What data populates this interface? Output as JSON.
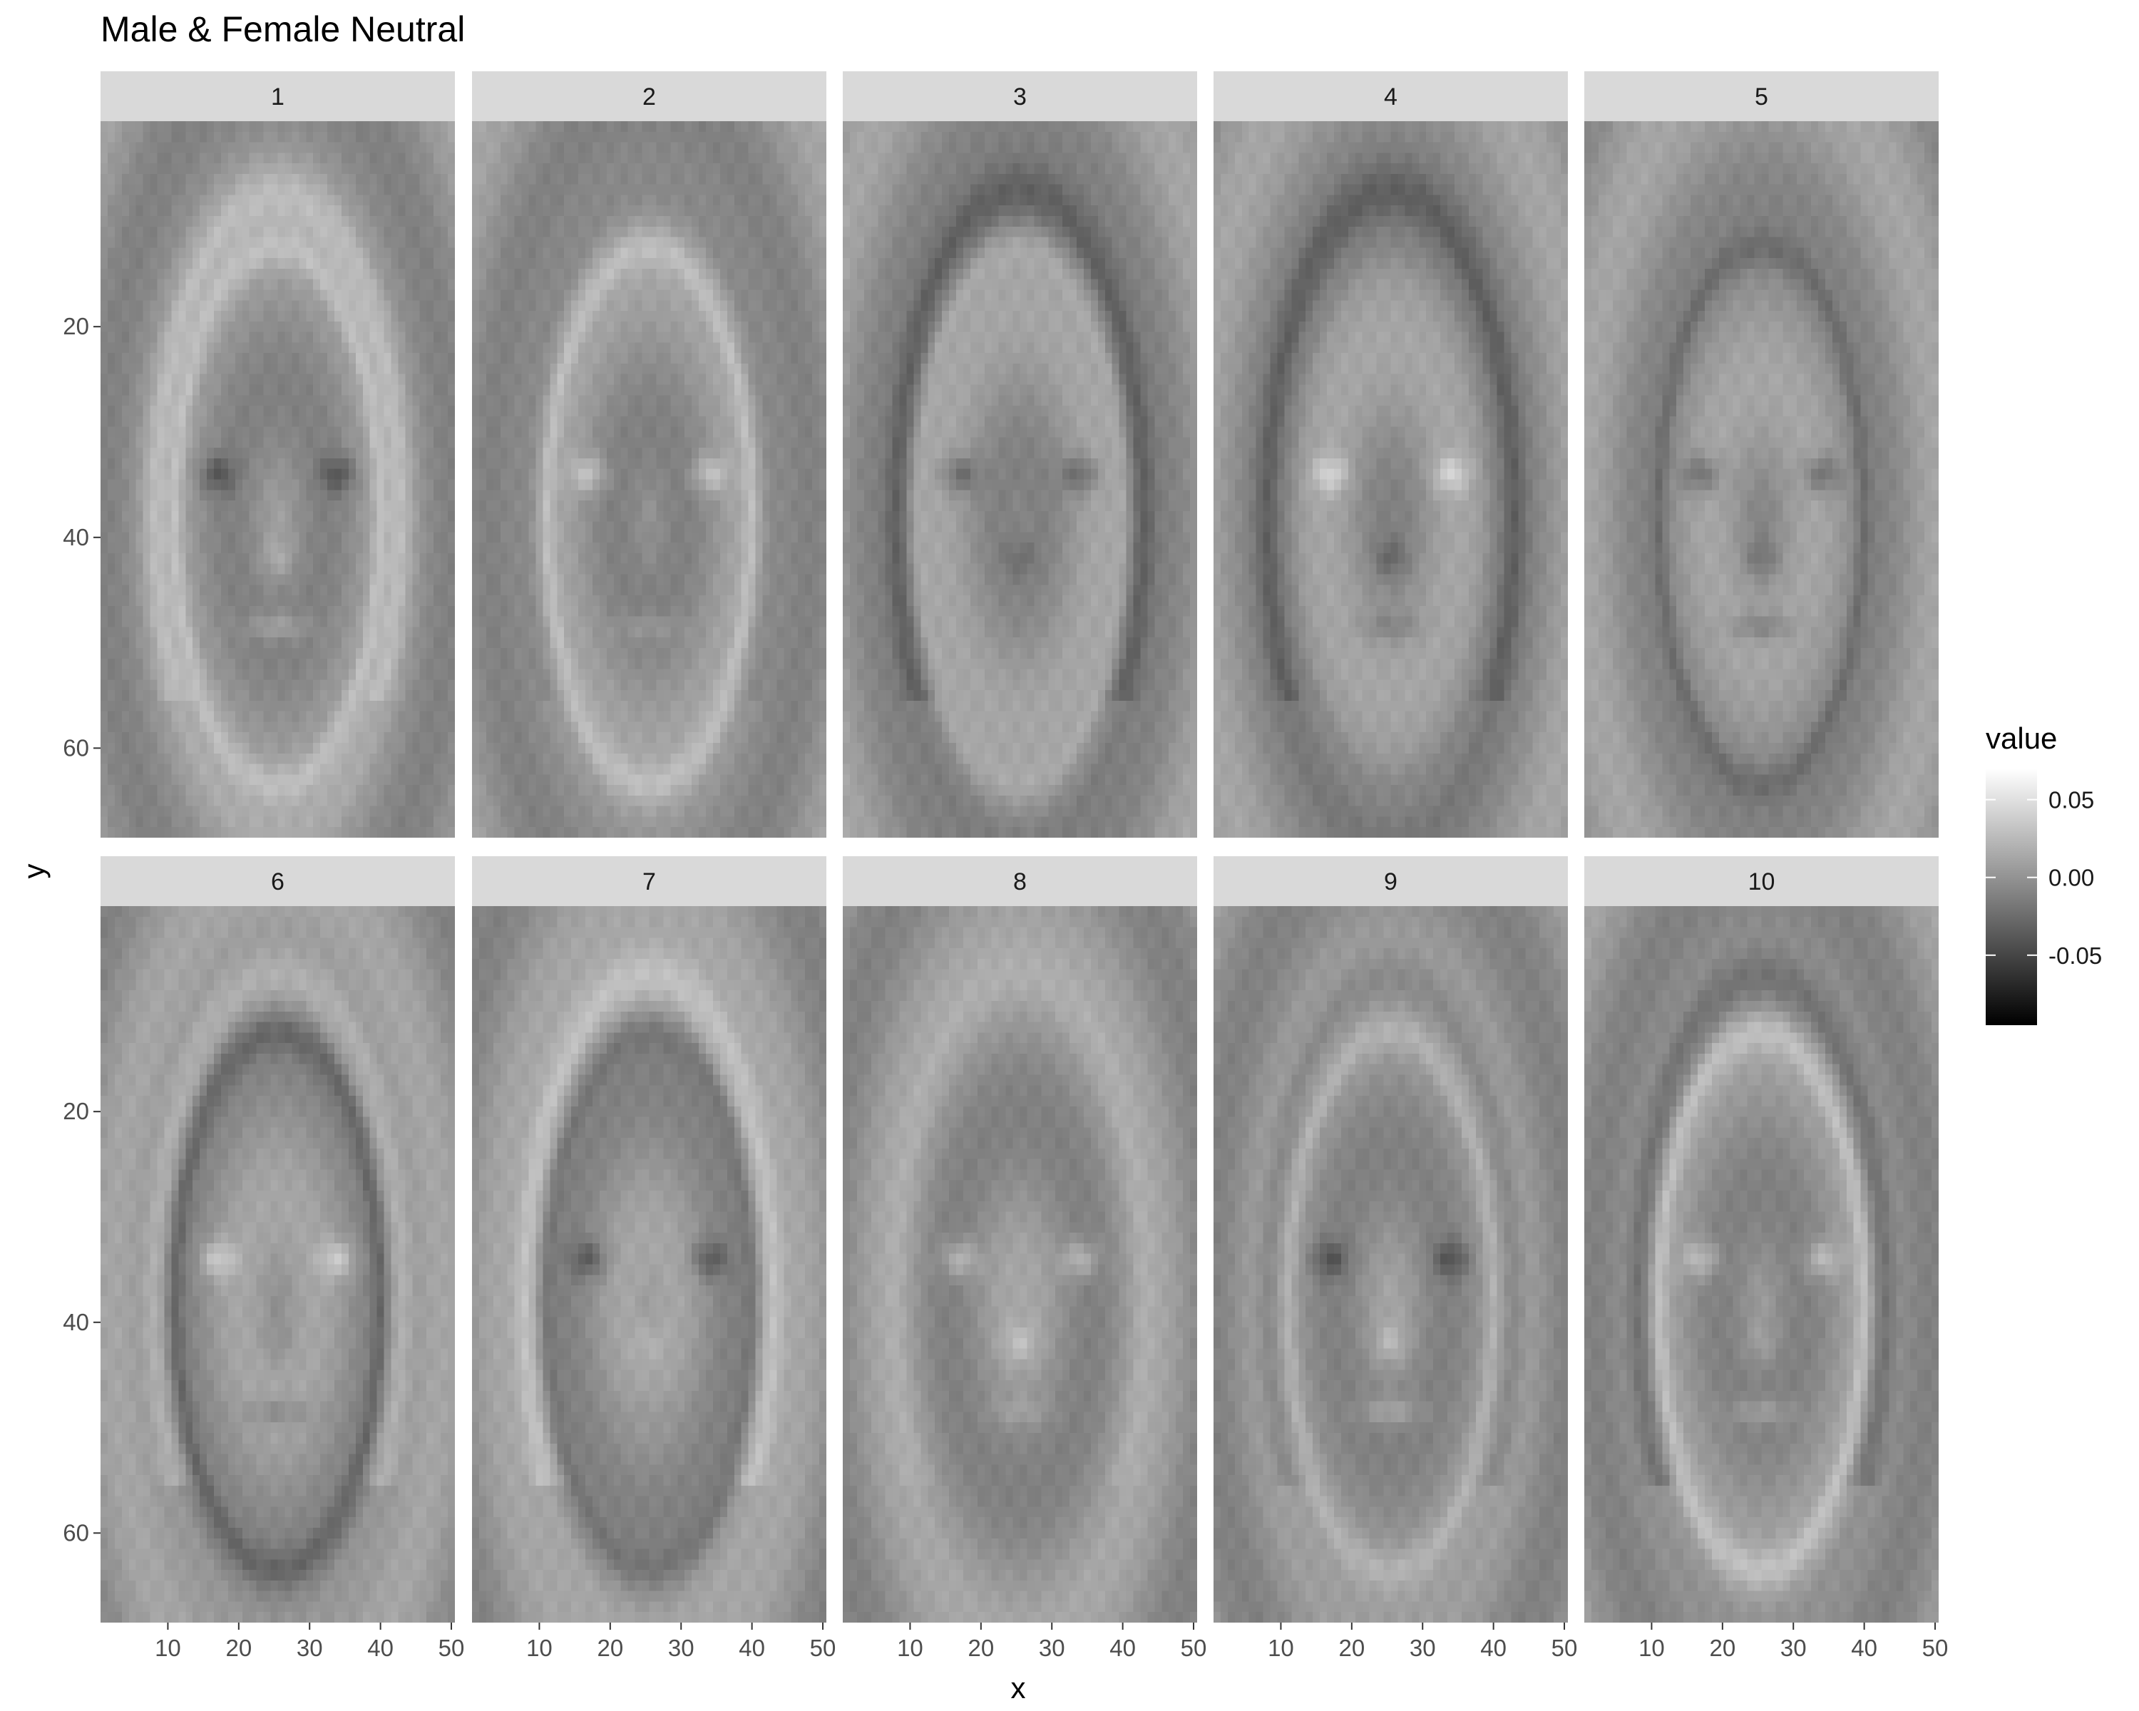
{
  "chart_data": {
    "type": "heatmap",
    "title": "Male & Female Neutral",
    "xlabel": "x",
    "ylabel": "y",
    "facet_rows": 2,
    "facet_cols": 5,
    "panels": [
      {
        "label": "1",
        "component": 1
      },
      {
        "label": "2",
        "component": 2
      },
      {
        "label": "3",
        "component": 3
      },
      {
        "label": "4",
        "component": 4
      },
      {
        "label": "5",
        "component": 5
      },
      {
        "label": "6",
        "component": 6
      },
      {
        "label": "7",
        "component": 7
      },
      {
        "label": "8",
        "component": 8
      },
      {
        "label": "9",
        "component": 9
      },
      {
        "label": "10",
        "component": 10
      }
    ],
    "x_range": [
      0.5,
      50.5
    ],
    "y_range": [
      0.5,
      68.5
    ],
    "y_reversed": true,
    "x_ticks": [
      10,
      20,
      30,
      40,
      50
    ],
    "x_tick_labels": [
      "10",
      "20",
      "30",
      "40",
      "50"
    ],
    "y_ticks": [
      20,
      40,
      60
    ],
    "y_tick_labels": [
      "20",
      "40",
      "60"
    ],
    "fill": {
      "name": "value",
      "min": -0.095,
      "max": 0.07,
      "low_color": "#000000",
      "high_color": "#ffffff",
      "breaks": [
        0.05,
        0.0,
        -0.05
      ],
      "break_labels": [
        "0.05",
        "0.00",
        "-0.05"
      ]
    },
    "colors": {
      "strip_background": "#d9d9d9",
      "panel_background": "#ebebeb"
    }
  }
}
